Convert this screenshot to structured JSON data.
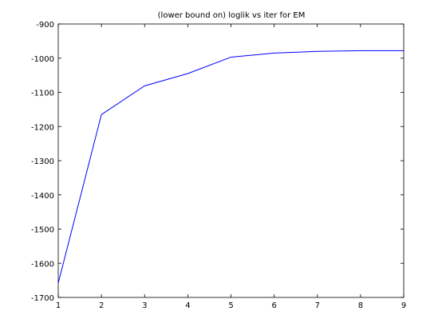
{
  "chart_data": {
    "type": "line",
    "title": "(lower bound on) loglik vs iter for EM",
    "xlabel": "",
    "ylabel": "",
    "x": [
      1,
      2,
      3,
      4,
      5,
      6,
      7,
      8,
      9
    ],
    "series": [
      {
        "values": [
          -1658,
          -1165,
          -1081,
          -1045,
          -997,
          -985,
          -980,
          -978,
          -978
        ],
        "color": "#0000ff"
      }
    ],
    "xlim": [
      1,
      9
    ],
    "ylim": [
      -1700,
      -900
    ],
    "xticks": [
      1,
      2,
      3,
      4,
      5,
      6,
      7,
      8,
      9
    ],
    "xtick_labels": [
      "1",
      "2",
      "3",
      "4",
      "5",
      "6",
      "7",
      "8",
      "9"
    ],
    "yticks": [
      -1700,
      -1600,
      -1500,
      -1400,
      -1300,
      -1200,
      -1100,
      -1000,
      -900
    ],
    "ytick_labels": [
      "-1700",
      "-1600",
      "-1500",
      "-1400",
      "-1300",
      "-1200",
      "-1100",
      "-1000",
      "-900"
    ],
    "grid": false,
    "legend": "none",
    "axis_color": "#000000"
  }
}
